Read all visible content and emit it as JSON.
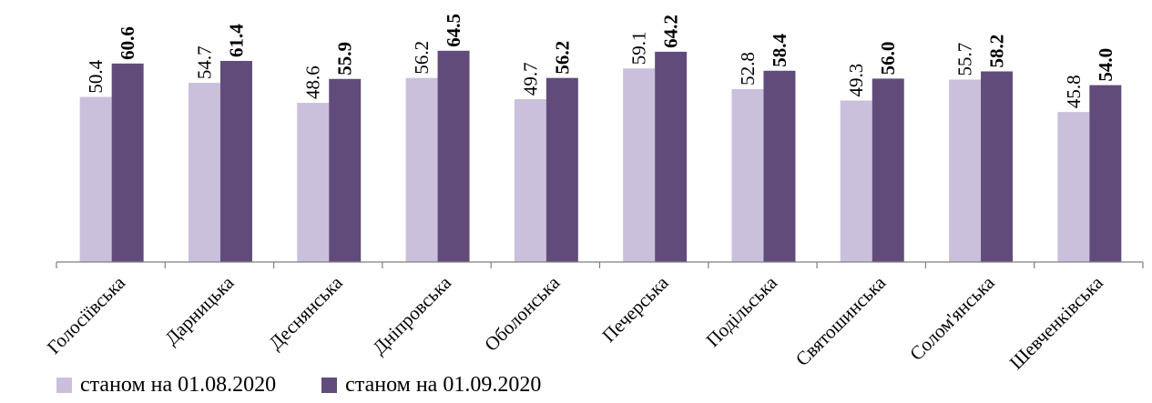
{
  "chart_data": {
    "type": "bar",
    "categories": [
      "Голосіївська",
      "Дарницька",
      "Деснянська",
      "Дніпровська",
      "Оболонська",
      "Печерська",
      "Подільська",
      "Святошинська",
      "Солом'янська",
      "Шевченківська"
    ],
    "series": [
      {
        "name": "станом на 01.08.2020",
        "values": [
          50.4,
          54.7,
          48.6,
          56.2,
          49.7,
          59.1,
          52.8,
          49.3,
          55.7,
          45.8
        ],
        "color": "#cbc0dc",
        "labels_bold": false
      },
      {
        "name": "станом на 01.09.2020",
        "values": [
          60.6,
          61.4,
          55.9,
          64.5,
          56.2,
          64.2,
          58.4,
          56.0,
          58.2,
          54.0
        ],
        "color": "#614b7b",
        "labels_bold": true
      }
    ],
    "ylim": [
      0,
      80
    ],
    "grid": false,
    "legend_position": "bottom-left",
    "data_labels": true,
    "label_decimals": 1
  }
}
